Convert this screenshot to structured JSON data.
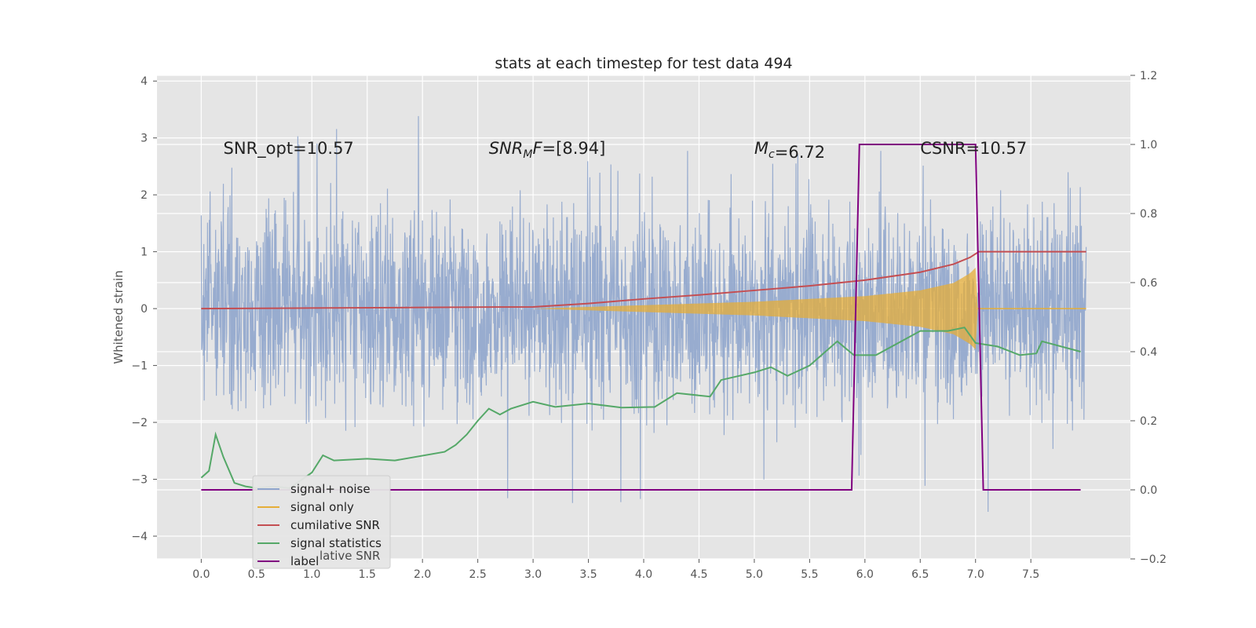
{
  "chart_data": {
    "type": "line",
    "title": "stats at each timestep for test data 494",
    "ylabel": "Whitened strain",
    "xlim": [
      -0.4,
      8.4
    ],
    "ylim": [
      -4.4,
      4.1
    ],
    "y2lim": [
      -0.2,
      1.2
    ],
    "xticks": [
      0.0,
      0.5,
      1.0,
      1.5,
      2.0,
      2.5,
      3.0,
      3.5,
      4.0,
      4.5,
      5.0,
      5.5,
      6.0,
      6.5,
      7.0,
      7.5
    ],
    "yticks": [
      -4,
      -3,
      -2,
      -1,
      0,
      1,
      2,
      3,
      4
    ],
    "y2ticks": [
      -0.2,
      0.0,
      0.2,
      0.4,
      0.6,
      0.8,
      1.0,
      1.2
    ],
    "xtick_labels": [
      "0.0",
      "0.5",
      "1.0",
      "1.5",
      "2.0",
      "2.5",
      "3.0",
      "3.5",
      "4.0",
      "4.5",
      "5.0",
      "5.5",
      "6.0",
      "6.5",
      "7.0",
      "7.5"
    ],
    "ytick_labels": [
      "−4",
      "−3",
      "−2",
      "−1",
      "0",
      "1",
      "2",
      "3",
      "4"
    ],
    "y2tick_labels": [
      "−0.2",
      "0.0",
      "0.2",
      "0.4",
      "0.6",
      "0.8",
      "1.0",
      "1.2"
    ],
    "grid": true,
    "legend_position": "lower-left",
    "annotations": [
      {
        "text": "SNR_opt=10.57",
        "x": 0.2,
        "y": 2.8
      },
      {
        "text": "SNR_MF=[8.94]",
        "x": 2.6,
        "y": 2.8
      },
      {
        "text": "M_c=6.72",
        "x": 5.0,
        "y": 2.8
      },
      {
        "text": "CSNR=10.57",
        "x": 6.5,
        "y": 2.8
      }
    ],
    "series": [
      {
        "name": "signal+ noise",
        "color": "#8fa5cc",
        "axis": "left",
        "style": "noise",
        "x_range": [
          0.0,
          8.0
        ],
        "envelope_upper": [
          [
            0.0,
            2.2
          ],
          [
            1.0,
            3.2
          ],
          [
            2.1,
            3.65
          ],
          [
            3.0,
            2.6
          ],
          [
            4.0,
            2.8
          ],
          [
            5.5,
            2.7
          ],
          [
            7.0,
            3.0
          ],
          [
            8.0,
            2.4
          ]
        ],
        "envelope_lower": [
          [
            0.0,
            -1.6
          ],
          [
            1.0,
            -2.2
          ],
          [
            2.7,
            -3.65
          ],
          [
            4.6,
            -3.7
          ],
          [
            6.0,
            -3.0
          ],
          [
            7.05,
            -4.05
          ],
          [
            8.0,
            -2.0
          ]
        ]
      },
      {
        "name": "signal only",
        "color": "#e5ae38",
        "axis": "left",
        "style": "chirp",
        "amplitude": [
          [
            0.0,
            0.0
          ],
          [
            3.0,
            0.0
          ],
          [
            4.0,
            0.06
          ],
          [
            5.0,
            0.12
          ],
          [
            6.0,
            0.22
          ],
          [
            6.5,
            0.32
          ],
          [
            6.8,
            0.45
          ],
          [
            6.95,
            0.62
          ],
          [
            7.0,
            0.72
          ],
          [
            7.02,
            0.0
          ],
          [
            8.0,
            0.0
          ]
        ]
      },
      {
        "name": "cumilative SNR",
        "color": "#c44e52",
        "axis": "left",
        "points": [
          [
            0.0,
            0.0
          ],
          [
            1.0,
            0.01
          ],
          [
            2.0,
            0.02
          ],
          [
            3.0,
            0.03
          ],
          [
            3.5,
            0.09
          ],
          [
            4.0,
            0.17
          ],
          [
            4.5,
            0.24
          ],
          [
            5.0,
            0.32
          ],
          [
            5.5,
            0.4
          ],
          [
            6.0,
            0.5
          ],
          [
            6.5,
            0.64
          ],
          [
            6.8,
            0.78
          ],
          [
            6.95,
            0.9
          ],
          [
            7.03,
            1.0
          ],
          [
            8.0,
            1.0
          ]
        ]
      },
      {
        "name": "signal statistics",
        "color": "#55a868",
        "axis": "right",
        "points": [
          [
            0.0,
            0.035
          ],
          [
            0.07,
            0.055
          ],
          [
            0.13,
            0.16
          ],
          [
            0.2,
            0.095
          ],
          [
            0.3,
            0.02
          ],
          [
            0.4,
            0.01
          ],
          [
            0.5,
            0.005
          ],
          [
            0.65,
            0.01
          ],
          [
            0.8,
            0.005
          ],
          [
            1.0,
            0.05
          ],
          [
            1.1,
            0.1
          ],
          [
            1.2,
            0.085
          ],
          [
            1.5,
            0.09
          ],
          [
            1.75,
            0.085
          ],
          [
            2.2,
            0.11
          ],
          [
            2.3,
            0.13
          ],
          [
            2.4,
            0.16
          ],
          [
            2.5,
            0.2
          ],
          [
            2.6,
            0.235
          ],
          [
            2.7,
            0.218
          ],
          [
            2.8,
            0.235
          ],
          [
            3.0,
            0.255
          ],
          [
            3.2,
            0.24
          ],
          [
            3.5,
            0.25
          ],
          [
            3.8,
            0.238
          ],
          [
            4.1,
            0.24
          ],
          [
            4.3,
            0.28
          ],
          [
            4.6,
            0.27
          ],
          [
            4.7,
            0.318
          ],
          [
            5.0,
            0.34
          ],
          [
            5.15,
            0.355
          ],
          [
            5.3,
            0.33
          ],
          [
            5.5,
            0.36
          ],
          [
            5.75,
            0.43
          ],
          [
            5.9,
            0.39
          ],
          [
            6.1,
            0.39
          ],
          [
            6.5,
            0.46
          ],
          [
            6.75,
            0.46
          ],
          [
            6.9,
            0.47
          ],
          [
            7.0,
            0.425
          ],
          [
            7.2,
            0.415
          ],
          [
            7.4,
            0.39
          ],
          [
            7.55,
            0.395
          ],
          [
            7.6,
            0.43
          ],
          [
            7.95,
            0.4
          ]
        ]
      },
      {
        "name": "label",
        "color": "#800080",
        "axis": "right",
        "points": [
          [
            0.0,
            0.0
          ],
          [
            5.88,
            0.0
          ],
          [
            5.95,
            1.0
          ],
          [
            7.0,
            1.0
          ],
          [
            7.07,
            0.0
          ],
          [
            7.95,
            0.0
          ]
        ]
      }
    ],
    "legend_items": [
      "signal+ noise",
      "signal only",
      "cumilative SNR",
      "signal statistics",
      "label"
    ],
    "legend_ghost_text": "lative SNR"
  }
}
